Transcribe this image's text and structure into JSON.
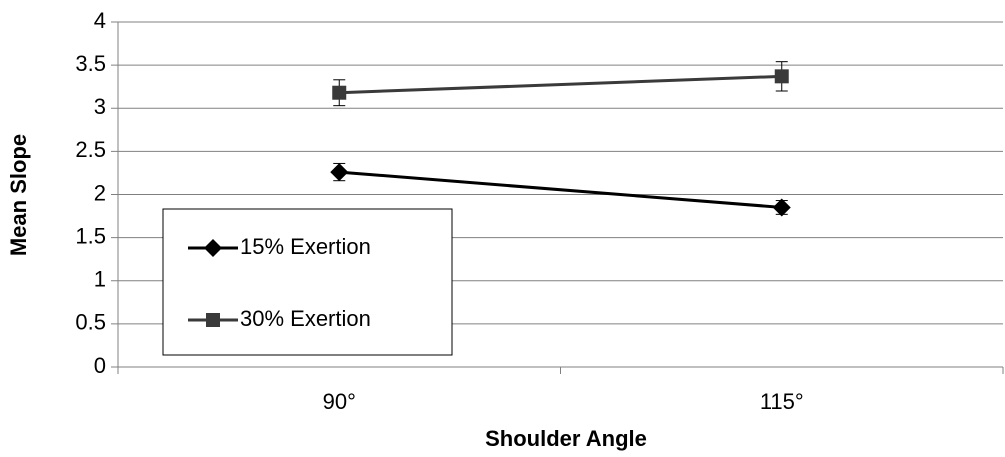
{
  "chart_data": {
    "type": "line",
    "x_label": "Shoulder Angle",
    "y_label": "Mean Slope",
    "categories": [
      "90°",
      "115°"
    ],
    "series": [
      {
        "name": "15% Exertion",
        "color": "#000000",
        "marker": "diamond",
        "values": [
          2.26,
          1.85
        ],
        "errors": [
          0.1,
          0.08
        ]
      },
      {
        "name": "30% Exertion",
        "color": "#3a3a3a",
        "marker": "square",
        "values": [
          3.18,
          3.37
        ],
        "errors": [
          0.15,
          0.17
        ]
      }
    ],
    "ylim": [
      0,
      4
    ],
    "yticks": [
      0,
      0.5,
      1,
      1.5,
      2,
      2.5,
      3,
      3.5,
      4
    ],
    "grid": true,
    "legend": "lower left"
  }
}
